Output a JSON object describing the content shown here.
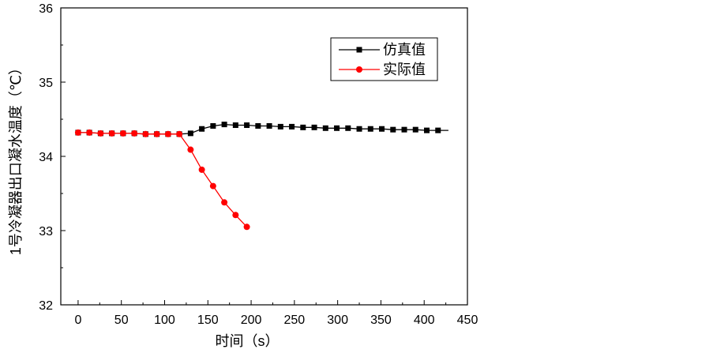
{
  "chart_data": {
    "type": "line",
    "title": "",
    "xlabel": "时间（s）",
    "ylabel": "1号冷凝器出口凝水温度（℃）",
    "xlim": [
      -20,
      450
    ],
    "ylim": [
      32,
      36
    ],
    "xticks": [
      0,
      50,
      100,
      150,
      200,
      250,
      300,
      350,
      400,
      450
    ],
    "yticks": [
      32,
      33,
      34,
      35,
      36
    ],
    "legend_position": "top-right",
    "series": [
      {
        "name": "仿真值",
        "color": "#000000",
        "marker": "square",
        "line_end_x": 428,
        "x": [
          0,
          13,
          26,
          39,
          52,
          65,
          78,
          91,
          104,
          117,
          130,
          143,
          156,
          169,
          182,
          195,
          208,
          221,
          234,
          247,
          260,
          273,
          286,
          299,
          312,
          325,
          338,
          351,
          364,
          377,
          390,
          403,
          416
        ],
        "y": [
          34.32,
          34.32,
          34.31,
          34.31,
          34.31,
          34.31,
          34.3,
          34.3,
          34.3,
          34.3,
          34.31,
          34.37,
          34.41,
          34.43,
          34.42,
          34.42,
          34.41,
          34.41,
          34.4,
          34.4,
          34.39,
          34.39,
          34.38,
          34.38,
          34.38,
          34.37,
          34.37,
          34.37,
          34.36,
          34.36,
          34.36,
          34.35,
          34.35
        ]
      },
      {
        "name": "实际值",
        "color": "#ff0000",
        "marker": "circle",
        "line_end_x": null,
        "x": [
          0,
          13,
          26,
          39,
          52,
          65,
          78,
          91,
          104,
          117,
          130,
          143,
          156,
          169,
          182,
          195
        ],
        "y": [
          34.32,
          34.32,
          34.31,
          34.31,
          34.31,
          34.31,
          34.3,
          34.3,
          34.3,
          34.3,
          34.09,
          33.82,
          33.6,
          33.38,
          33.21,
          33.05
        ]
      }
    ]
  }
}
